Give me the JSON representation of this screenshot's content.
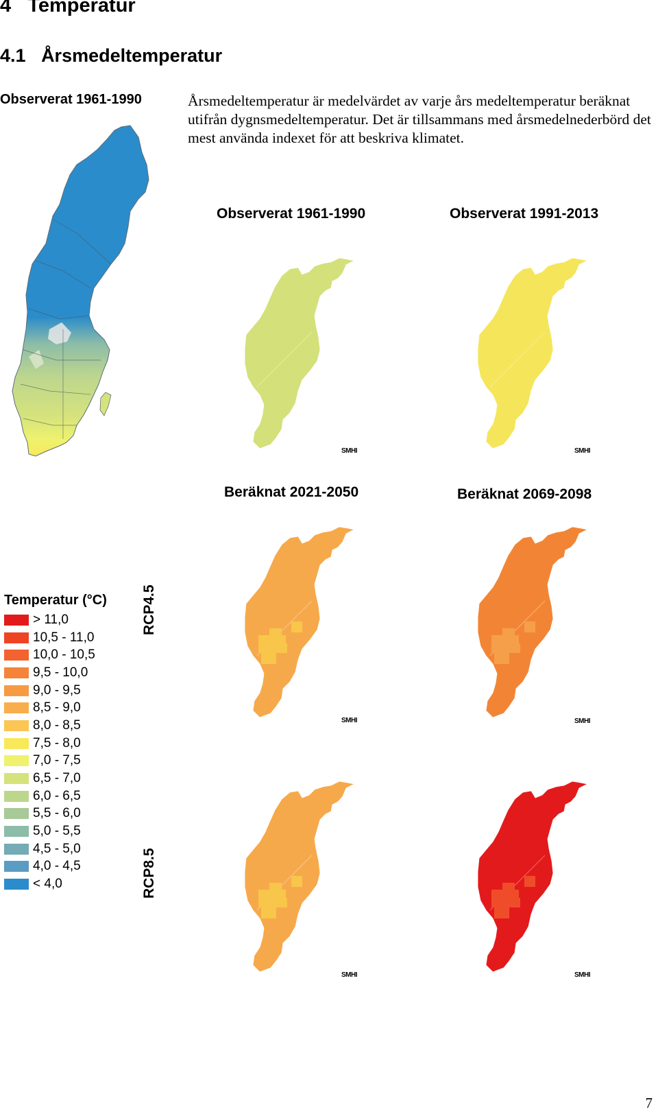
{
  "heading": {
    "number": "4",
    "title": "Temperatur"
  },
  "subheading": {
    "number": "4.1",
    "title": "Årsmedeltemperatur"
  },
  "side_label": "Observerat 1961-1990",
  "intro_text": "Årsmedeltemperatur är medelvärdet av varje års medeltemperatur beräknat utifrån dygnsmedeltemperatur. Det är tillsammans med årsmedelnederbörd det mest använda indexet för att beskriva klimatet.",
  "maps": {
    "obs_1961": {
      "title": "Observerat 1961-1990",
      "fill": "#d4e07a"
    },
    "obs_1991": {
      "title": "Observerat 1991-2013",
      "fill": "#f5e55a"
    },
    "calc_2021": {
      "title": "Beräknat 2021-2050"
    },
    "calc_2069": {
      "title": "Beräknat 2069-2098"
    },
    "rcp45_2021": {
      "fill": "#f6a94a",
      "patch": "#f8c64a"
    },
    "rcp45_2069": {
      "fill": "#f28535",
      "patch": "#f59f4a"
    },
    "rcp85_2021": {
      "fill": "#f6a94a",
      "patch": "#f8c64a"
    },
    "rcp85_2069": {
      "fill": "#e31a1c",
      "patch": "#ef4d2a"
    }
  },
  "rcp_labels": {
    "rcp45": "RCP4.5",
    "rcp85": "RCP8.5"
  },
  "smhi": "SMHI",
  "legend": {
    "title": "Temperatur (°C)",
    "items": [
      {
        "label": "> 11,0",
        "color": "#e31a1c"
      },
      {
        "label": "10,5 - 11,0",
        "color": "#ef4424"
      },
      {
        "label": "10,0 - 10,5",
        "color": "#f36330"
      },
      {
        "label": "9,5 - 10,0",
        "color": "#f5833a"
      },
      {
        "label": "9,0 - 9,5",
        "color": "#f79a44"
      },
      {
        "label": "8,5 - 9,0",
        "color": "#f9ae4c"
      },
      {
        "label": "8,0 - 8,5",
        "color": "#fbc654"
      },
      {
        "label": "7,5 - 8,0",
        "color": "#f8e85a"
      },
      {
        "label": "7,0 - 7,5",
        "color": "#eef26e"
      },
      {
        "label": "6,5 - 7,0",
        "color": "#d6e37c"
      },
      {
        "label": "6,0 - 6,5",
        "color": "#bdd68e"
      },
      {
        "label": "5,5 - 6,0",
        "color": "#a7ca98"
      },
      {
        "label": "5,0 - 5,5",
        "color": "#8dbca8"
      },
      {
        "label": "4,5 - 5,0",
        "color": "#75abb4"
      },
      {
        "label": "4,0 - 4,5",
        "color": "#5a9cc2"
      },
      {
        "label": "< 4,0",
        "color": "#2b8ccb"
      }
    ]
  },
  "page_number": "7"
}
